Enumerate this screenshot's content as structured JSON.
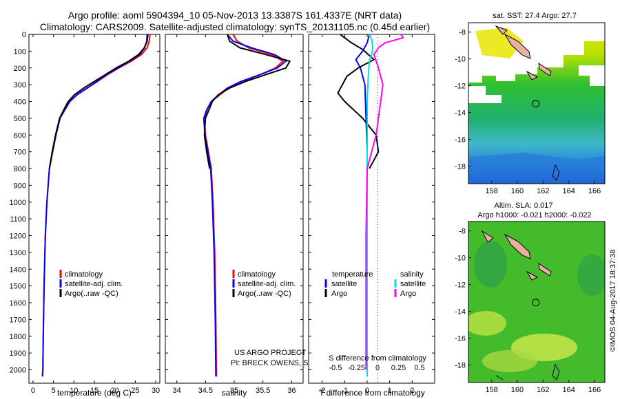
{
  "figure": {
    "title_line1": "Argo profile: aoml 5904394_10 05-Nov-2013 13.3387S 161.4337E (NRT data)",
    "title_line2": "Climatology: CARS2009. Satellite-adjusted climatology: synTS_20131105.nc (0.45d earlier)",
    "credit_line1": "US ARGO PROJECT",
    "credit_line2": "PI: BRECK OWENS, STEVE JAYNE, P.E. ROBBINS",
    "imos_stamp": "©IMOS 04-Aug-2017 18:37:38"
  },
  "colors": {
    "climatology": "#ff0000",
    "satellite": "#0000ff",
    "argo": "#000000",
    "satellite_salinity": "#00e0e0",
    "argo_salinity": "#ff00ff"
  },
  "chart_data": [
    {
      "id": "temperature",
      "type": "line",
      "xlabel": "temperature (deg C)",
      "ylabel": "",
      "xlim": [
        -1,
        31
      ],
      "ylim": [
        2080,
        0
      ],
      "xticks": [
        0,
        5,
        10,
        15,
        20,
        25,
        30
      ],
      "yticks": [
        0,
        100,
        200,
        300,
        400,
        500,
        600,
        700,
        800,
        900,
        1000,
        1100,
        1200,
        1300,
        1400,
        1500,
        1600,
        1700,
        1800,
        1900,
        2000
      ],
      "legend": [
        "climatology",
        "satellite-adj. clim.",
        "Argo(..raw -QC)"
      ],
      "legend_position": "lower-right",
      "series": [
        {
          "name": "climatology",
          "color": "#ff0000",
          "x": [
            28.6,
            28.4,
            27.9,
            26.5,
            24.0,
            21.0,
            18.2,
            15.8,
            13.3,
            10.8,
            9.0,
            7.8,
            6.6,
            5.6,
            4.8,
            4.0,
            3.4,
            3.0,
            2.7,
            2.5,
            2.4,
            2.3
          ],
          "y": [
            0,
            40,
            80,
            120,
            160,
            200,
            240,
            280,
            320,
            360,
            400,
            450,
            500,
            600,
            700,
            800,
            1000,
            1200,
            1500,
            1800,
            2000,
            2040
          ]
        },
        {
          "name": "satellite-adj. clim.",
          "color": "#0000ff",
          "x": [
            27.9,
            27.8,
            27.3,
            26.1,
            23.6,
            20.8,
            18.0,
            15.6,
            13.2,
            10.7,
            9.0,
            7.7,
            6.6,
            5.6,
            4.8,
            4.0,
            3.4,
            3.0,
            2.7,
            2.5,
            2.4,
            2.3
          ],
          "y": [
            0,
            40,
            80,
            120,
            160,
            200,
            240,
            280,
            320,
            360,
            400,
            450,
            500,
            600,
            700,
            800,
            1000,
            1200,
            1500,
            1800,
            2000,
            2040
          ]
        },
        {
          "name": "Argo(..raw -QC)",
          "color": "#000000",
          "x": [
            28.1,
            27.9,
            27.2,
            25.8,
            23.4,
            20.3,
            17.7,
            15.0,
            12.4,
            10.1,
            8.6,
            7.5,
            6.5,
            5.5,
            4.7,
            4.0
          ],
          "y": [
            0,
            40,
            80,
            120,
            160,
            200,
            240,
            280,
            320,
            360,
            400,
            450,
            500,
            600,
            700,
            800
          ]
        }
      ]
    },
    {
      "id": "salinity",
      "type": "line",
      "xlabel": "salinity",
      "xlim": [
        33.8,
        36.2
      ],
      "ylim": [
        2080,
        0
      ],
      "xticks": [
        34,
        34.5,
        35,
        35.5,
        36
      ],
      "xtick_labels": [
        "34",
        "34.5",
        "35",
        "35.5",
        "36"
      ],
      "legend": [
        "climatology",
        "satellite-adj. clim.",
        "Argo(..raw -QC)"
      ],
      "legend_position": "lower-right",
      "series": [
        {
          "name": "climatology",
          "color": "#ff0000",
          "x": [
            34.98,
            35.05,
            35.25,
            35.65,
            35.85,
            35.72,
            35.45,
            35.15,
            34.9,
            34.75,
            34.6,
            34.53,
            34.48,
            34.5,
            34.55,
            34.6,
            34.63,
            34.66,
            34.68,
            34.69
          ],
          "y": [
            0,
            40,
            80,
            120,
            160,
            200,
            240,
            280,
            320,
            360,
            400,
            450,
            500,
            600,
            700,
            800,
            1000,
            1300,
            1700,
            2040
          ]
        },
        {
          "name": "satellite-adj. clim.",
          "color": "#0000ff",
          "x": [
            34.88,
            34.98,
            35.3,
            35.7,
            35.9,
            35.75,
            35.45,
            35.12,
            34.88,
            34.73,
            34.6,
            34.52,
            34.47,
            34.49,
            34.54,
            34.59,
            34.62,
            34.65,
            34.67,
            34.68
          ],
          "y": [
            0,
            40,
            80,
            120,
            160,
            200,
            240,
            280,
            320,
            360,
            400,
            450,
            500,
            600,
            700,
            800,
            1000,
            1300,
            1700,
            2040
          ]
        },
        {
          "name": "Argo(..raw -QC)",
          "color": "#000000",
          "x": [
            34.88,
            34.92,
            35.1,
            35.55,
            35.97,
            35.9,
            35.55,
            35.2,
            34.92,
            34.72,
            34.62,
            34.56,
            34.5,
            34.48,
            34.52,
            34.57
          ],
          "y": [
            0,
            40,
            80,
            120,
            160,
            200,
            240,
            280,
            320,
            360,
            400,
            450,
            500,
            600,
            700,
            800
          ]
        }
      ]
    },
    {
      "id": "difference",
      "type": "line",
      "xlabel": "T difference from climatology",
      "top_xlabel": "S difference from climatology",
      "xlim": [
        -2.6,
        3.0
      ],
      "ylim": [
        2080,
        0
      ],
      "xticks": [
        -2,
        -1,
        0,
        1,
        2
      ],
      "top_xticks": [
        -0.5,
        -0.25,
        0,
        0.25,
        0.5
      ],
      "top_xtick_labels": [
        "-0.5",
        "-0.25",
        "0",
        "0.25",
        "0.5"
      ],
      "legend_titles": [
        "temperature",
        "salinity"
      ],
      "legend": [
        "satellite",
        "Argo",
        "satellite",
        "Argo"
      ],
      "legend_position": "lower-center",
      "series": [
        {
          "name": "temperature satellite",
          "color": "#0000ff",
          "x": [
            0.1,
            0.0,
            -0.2,
            -0.5,
            -0.3,
            -0.1,
            -0.05,
            0.0,
            0.0,
            0.0,
            0.0,
            0.0,
            0.0
          ],
          "y": [
            0,
            50,
            100,
            150,
            200,
            300,
            500,
            700,
            900,
            1200,
            1500,
            1800,
            2040
          ]
        },
        {
          "name": "temperature Argo",
          "color": "#000000",
          "x": [
            -1.2,
            -1.0,
            -0.7,
            -0.2,
            0.3,
            -0.4,
            -0.9,
            -1.1,
            -1.3,
            -1.0,
            -0.6,
            -0.2,
            0.1,
            0.4,
            0.5,
            0.3,
            0.1
          ],
          "y": [
            0,
            20,
            50,
            90,
            150,
            200,
            250,
            300,
            350,
            400,
            450,
            500,
            550,
            600,
            700,
            750,
            800
          ]
        },
        {
          "name": "salinity satellite",
          "color": "#00e0e0",
          "x": [
            0.1,
            0.2,
            0.25,
            0.22,
            0.1,
            0.05,
            0.0,
            0.0,
            0.0,
            0.0,
            0.0,
            0.0
          ],
          "y": [
            0,
            30,
            70,
            110,
            160,
            250,
            400,
            700,
            900,
            1300,
            1700,
            2040
          ]
        },
        {
          "name": "salinity Argo",
          "color": "#ff00ff",
          "x": [
            1.5,
            1.6,
            0.8,
            0.5,
            0.3,
            0.5,
            0.7,
            0.6,
            0.5,
            0.4,
            0.2,
            0.0,
            -0.05,
            -0.05
          ],
          "y": [
            0,
            20,
            50,
            80,
            120,
            200,
            300,
            400,
            500,
            600,
            700,
            800,
            1200,
            2000
          ]
        }
      ]
    },
    {
      "id": "sst-map",
      "type": "heatmap",
      "title": "sat. SST: 27.4 Argo: 27.7",
      "xlim": [
        156.2,
        166.8
      ],
      "ylim": [
        -19.3,
        -7.3
      ],
      "xticks": [
        158,
        160,
        162,
        164,
        166
      ],
      "yticks": [
        -8,
        -10,
        -12,
        -14,
        -16,
        -18
      ],
      "float_position": [
        161.43,
        -13.34
      ]
    },
    {
      "id": "sla-map",
      "type": "heatmap",
      "title_line1": "Altim. SLA: 0.017",
      "title_line2": "Argo h1000: -0.021 h2000: -0.022",
      "xlim": [
        156.2,
        166.8
      ],
      "ylim": [
        -19.3,
        -7.3
      ],
      "xticks": [
        158,
        160,
        162,
        164,
        166
      ],
      "yticks": [
        -8,
        -10,
        -12,
        -14,
        -16,
        -18
      ],
      "float_position": [
        161.43,
        -13.34
      ]
    }
  ]
}
